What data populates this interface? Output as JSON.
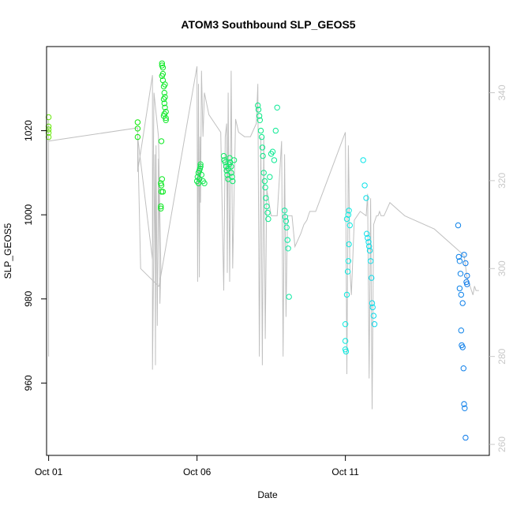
{
  "chart_data": {
    "type": "scatter",
    "title": "ATOM3 Southbound SLP_GEOS5",
    "xlabel": "Date",
    "ylabel": "SLP_GEOS5",
    "xlim": [
      -0.07,
      14.85
    ],
    "ylim": [
      942.8,
      1040.0
    ],
    "x_ticks": [
      0,
      5,
      10
    ],
    "x_tick_labels": [
      "Oct 01",
      "Oct 06",
      "Oct 11"
    ],
    "y_ticks": [
      960,
      980,
      1000,
      1020
    ],
    "y_tick_labels": [
      "960",
      "980",
      "1000",
      "1020"
    ],
    "y2lim": [
      257.5,
      350.5
    ],
    "y2_ticks": [
      260,
      280,
      300,
      320,
      340
    ],
    "y2_tick_labels": [
      "260",
      "280",
      "300",
      "320",
      "340"
    ],
    "y2_color": "#c8c8c8",
    "trace_color": "#c0c0c0",
    "point_marker": "open-circle",
    "grid": false,
    "legend": "none",
    "trace_series": {
      "name": "",
      "y_axis": "right",
      "x": [
        0.0,
        0.0,
        0.0,
        0.0,
        3.0,
        3.0,
        3.5,
        3.5,
        3.58,
        3.6,
        3.62,
        3.66,
        3.7,
        3.75,
        3.78,
        3.7,
        3.55,
        3.5,
        3.0,
        3.1,
        3.7,
        3.72,
        5.0,
        5.02,
        5.05,
        5.08,
        5.1,
        5.12,
        5.15,
        5.2,
        5.25,
        5.4,
        5.6,
        5.8,
        5.9,
        5.95,
        6.0,
        6.02,
        6.05,
        6.1,
        6.15,
        6.2,
        6.3,
        6.4,
        6.6,
        6.8,
        7.0,
        7.05,
        7.1,
        7.15,
        7.2,
        7.25,
        7.3,
        7.35,
        7.5,
        7.7,
        7.85,
        7.9,
        7.95,
        8.0,
        8.05,
        8.1,
        8.2,
        8.3,
        8.5,
        8.6,
        8.7,
        8.75,
        8.8,
        8.85,
        8.9,
        8.95,
        9.0,
        10.0,
        10.05,
        10.1,
        10.12,
        10.15,
        10.2,
        10.3,
        10.5,
        10.7,
        10.75,
        10.8,
        10.85,
        10.9,
        10.95,
        11.0,
        11.05,
        11.1,
        11.15,
        11.2,
        11.3,
        11.5,
        12.0,
        13.0,
        14.0,
        14.1,
        14.2,
        14.25,
        14.3,
        14.35,
        14.4,
        14.45,
        14.5
      ],
      "y": [
        328,
        280,
        334,
        329,
        332,
        322,
        344,
        277,
        326,
        278,
        328,
        287,
        325,
        292,
        300,
        330,
        340,
        302,
        330,
        300,
        296,
        296,
        346,
        297,
        342,
        298,
        330,
        315,
        345,
        330,
        340,
        335,
        333,
        331,
        295,
        330,
        333,
        299,
        340,
        297,
        345,
        300,
        334,
        331,
        330,
        330,
        333,
        342,
        280,
        330,
        278,
        330,
        284,
        318,
        312,
        312,
        329,
        280,
        326,
        289,
        312,
        312,
        312,
        305,
        308,
        310,
        311,
        312,
        313,
        313,
        313,
        313,
        313,
        331,
        276,
        328,
        320,
        300,
        294,
        311,
        313,
        312,
        317,
        275,
        316,
        268,
        310,
        311,
        312,
        312,
        313,
        312,
        312,
        315,
        312,
        309,
        303,
        298,
        296,
        295,
        294,
        296,
        295,
        295,
        295
      ]
    },
    "series": [
      {
        "name": "",
        "y_axis": "left",
        "x": [
          0.0,
          0.0,
          0.0,
          0.0,
          0.0,
          3.0,
          3.0,
          3.0,
          3.78,
          3.78,
          3.78,
          3.8,
          3.8,
          3.8,
          3.82,
          3.82,
          3.82,
          3.85,
          3.85,
          3.85,
          3.88,
          3.88,
          3.88,
          3.9,
          3.9,
          3.9,
          3.92,
          3.92,
          3.92,
          3.95,
          3.95,
          3.95,
          3.82,
          3.85,
          5.0,
          5.02,
          5.05,
          5.05,
          5.08,
          5.1,
          5.12,
          5.15,
          5.2,
          5.25,
          5.08,
          5.12,
          5.9,
          5.92,
          5.95,
          5.98,
          6.0,
          6.02,
          6.05,
          6.08,
          6.1,
          6.12,
          6.15,
          6.18,
          6.2,
          6.05,
          6.15,
          6.25,
          7.05,
          7.07,
          7.1,
          7.12,
          7.15,
          7.18,
          7.2,
          7.22,
          7.25,
          7.28,
          7.3,
          7.32,
          7.35,
          7.38,
          7.4,
          7.45,
          7.5,
          7.55,
          7.6,
          7.65,
          7.7,
          7.95,
          7.97,
          8.0,
          8.02,
          8.05,
          8.07,
          8.1,
          10.0,
          10.0,
          10.02,
          10.05,
          10.08,
          10.1,
          10.12,
          10.15,
          10.0,
          10.05,
          10.1,
          10.12,
          10.6,
          10.65,
          10.7,
          10.72,
          10.75,
          10.78,
          10.8,
          10.82,
          10.85,
          10.88,
          10.9,
          10.92,
          10.95,
          10.98,
          13.8,
          13.82,
          13.85,
          13.88,
          13.9,
          13.92,
          13.95,
          13.98,
          14.0,
          14.02,
          14.05,
          14.08,
          14.1,
          13.85,
          13.9,
          13.95,
          14.0,
          14.05,
          14.1
        ],
        "y": [
          1023.2,
          1021.0,
          1020.3,
          1019.5,
          1018.5,
          1022.0,
          1020.5,
          1018.5,
          1007.5,
          1002.0,
          1001.5,
          1007.0,
          1005.5,
          1017.5,
          1035.5,
          1036.0,
          1033.0,
          1035.0,
          1032.0,
          1033.5,
          1030.5,
          1027.5,
          1023.5,
          1026.5,
          1024.0,
          1029.0,
          1031.0,
          1028.0,
          1025.5,
          1024.5,
          1022.5,
          1023.0,
          1008.5,
          1005.5,
          1008.0,
          1009.0,
          1007.5,
          1010.0,
          1008.5,
          1011.0,
          1012.0,
          1009.5,
          1008.0,
          1007.5,
          1010.5,
          1011.5,
          1014.0,
          1013.0,
          1012.5,
          1011.5,
          1010.5,
          1009.5,
          1011.0,
          1012.0,
          1013.5,
          1012.5,
          1010.0,
          1009.0,
          1008.0,
          1008.5,
          1011.5,
          1013.0,
          1026.0,
          1025.0,
          1023.5,
          1022.5,
          1020.0,
          1018.5,
          1016.0,
          1014.0,
          1010.0,
          1008.0,
          1006.5,
          1004.0,
          1002.0,
          1000.5,
          999.0,
          1009.0,
          1014.5,
          1015.0,
          1013.0,
          1020.0,
          1025.5,
          1001.0,
          999.5,
          998.5,
          997.0,
          994.0,
          992.0,
          980.5,
          974.0,
          968.0,
          967.5,
          981.0,
          986.5,
          989.0,
          993.0,
          997.5,
          970.0,
          999.0,
          1000.0,
          1001.0,
          1013.0,
          1007.0,
          1004.0,
          995.5,
          994.5,
          993.5,
          992.5,
          991.5,
          989.0,
          985.0,
          979.0,
          978.0,
          976.0,
          974.0,
          997.5,
          990.0,
          989.0,
          986.0,
          972.5,
          969.0,
          968.5,
          963.5,
          955.0,
          954.0,
          947.0,
          984.0,
          983.5,
          982.5,
          981.0,
          979.0,
          990.5,
          988.5,
          985.5
        ]
      }
    ]
  }
}
